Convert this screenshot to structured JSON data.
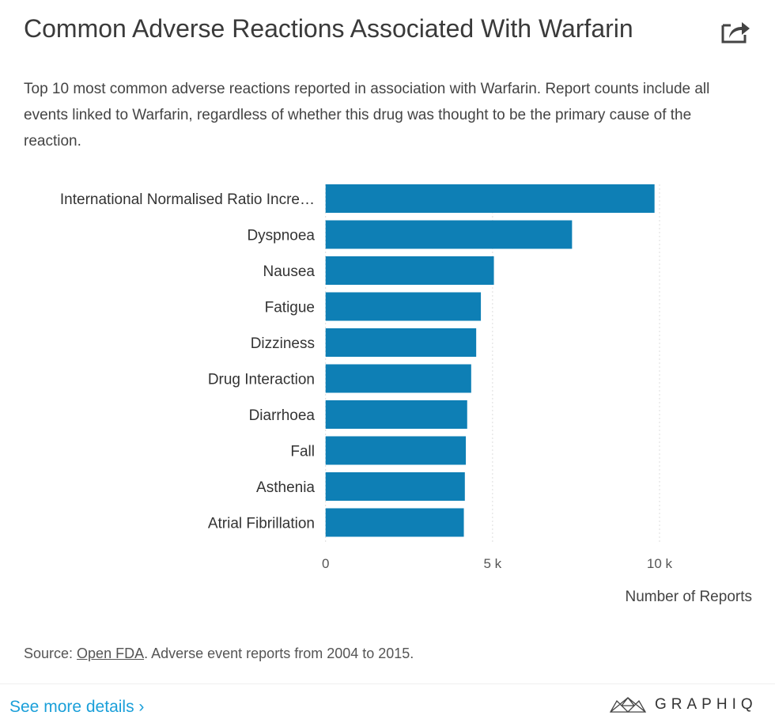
{
  "header": {
    "title": "Common Adverse Reactions Associated With Warfarin",
    "share_icon": "share-icon",
    "subtitle": "Top 10 most common adverse reactions reported in association with Warfarin. Report counts include all events linked to Warfarin, regardless of whether this drug was thought to be the primary cause of the reaction."
  },
  "chart_data": {
    "type": "bar",
    "orientation": "horizontal",
    "categories": [
      "International Normalised Ratio Incre…",
      "Dyspnoea",
      "Nausea",
      "Fatigue",
      "Dizziness",
      "Drug Interaction",
      "Diarrhoea",
      "Fall",
      "Asthenia",
      "Atrial Fibrillation"
    ],
    "values": [
      9850,
      7380,
      5040,
      4650,
      4510,
      4360,
      4240,
      4200,
      4170,
      4140
    ],
    "xlabel": "Number of Reports",
    "xlim": [
      0,
      10000
    ],
    "xticks": [
      0,
      5000,
      10000
    ],
    "xtick_labels": [
      "0",
      "5 k",
      "10 k"
    ],
    "grid": "vertical dotted",
    "bar_color": "#0e7fb5"
  },
  "footer": {
    "source_prefix": "Source: ",
    "source_link": "Open FDA",
    "source_suffix": ". Adverse event reports from 2004 to 2015.",
    "more_link": "See more details ›",
    "logo": "GRAPHIQ"
  }
}
